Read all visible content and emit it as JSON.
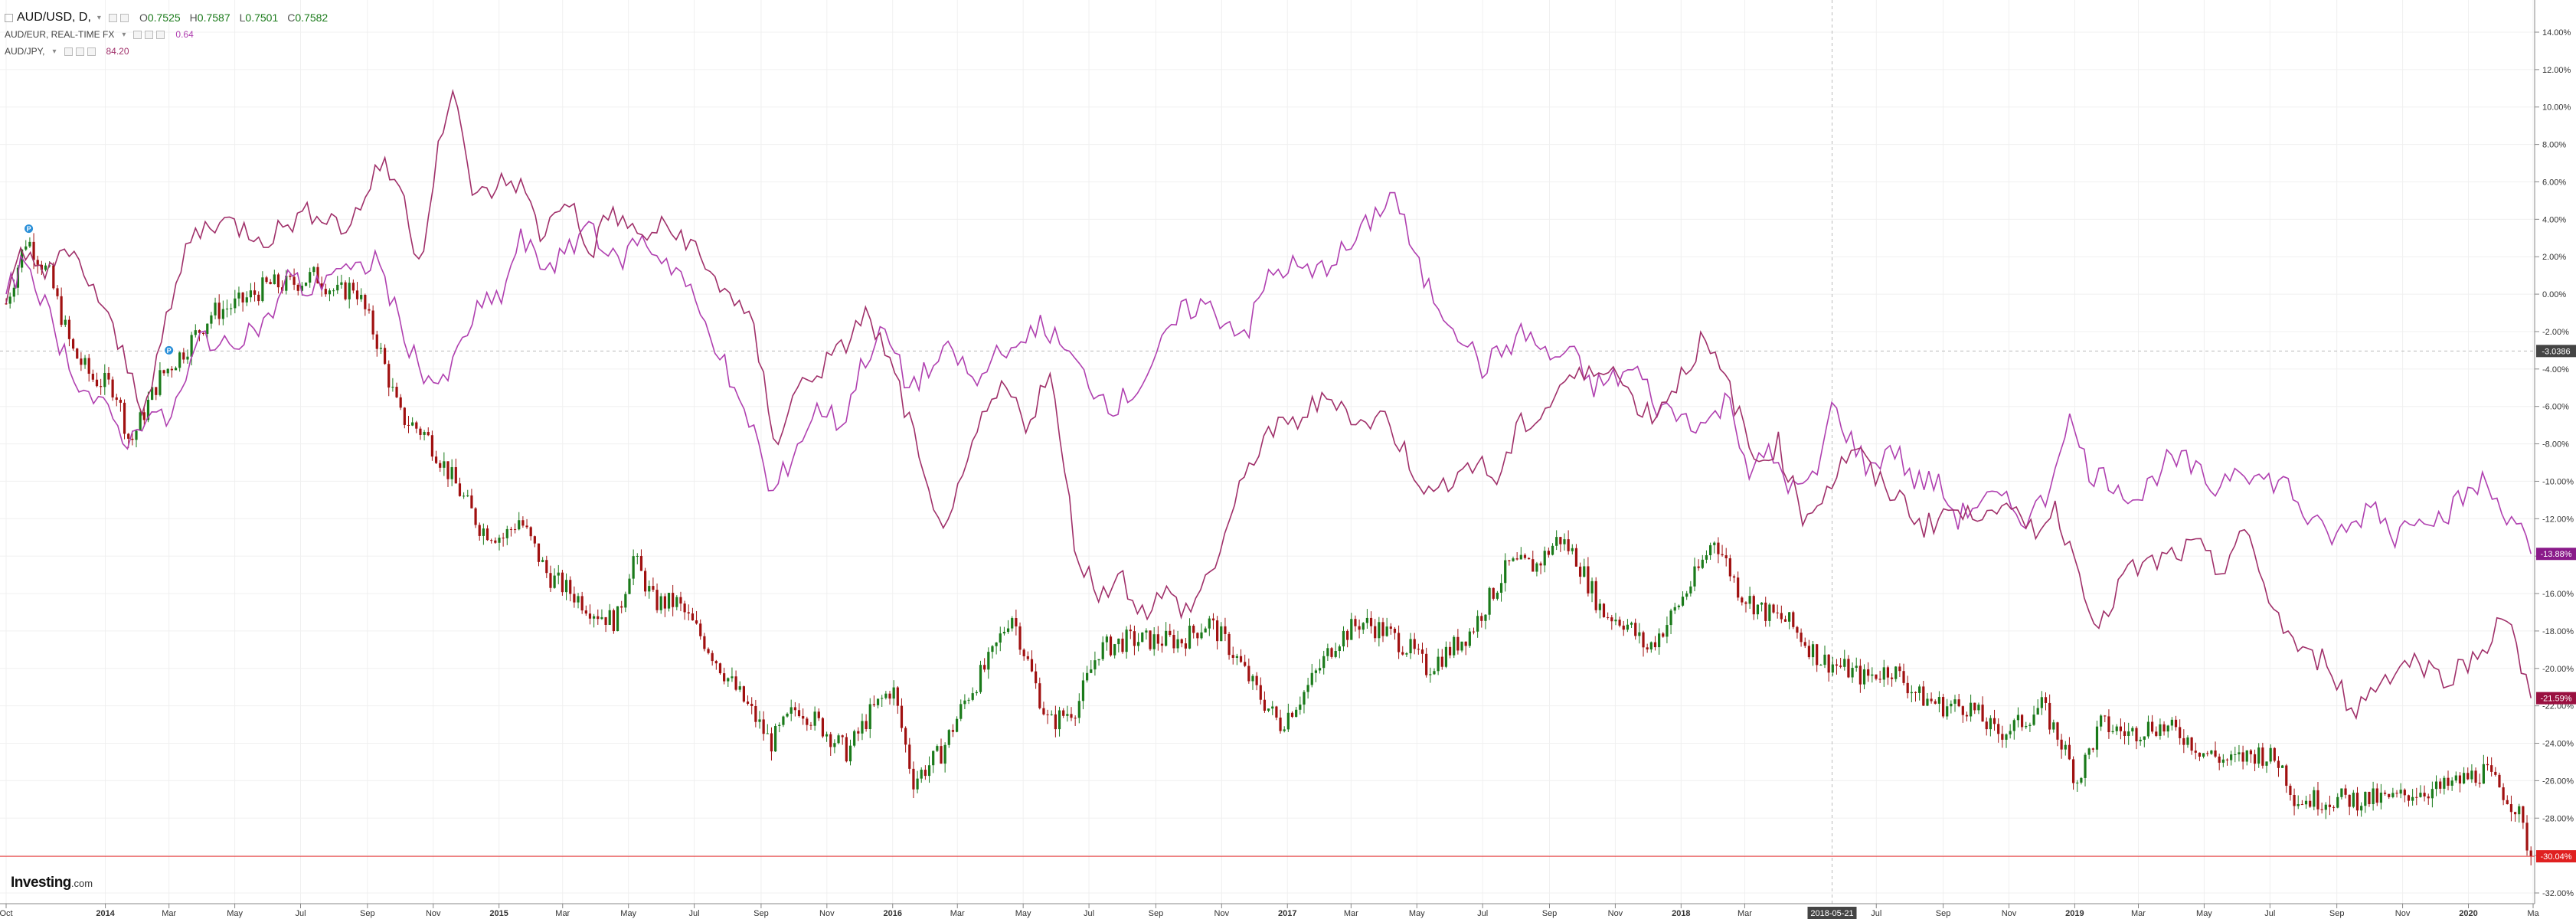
{
  "legend": {
    "main": {
      "symbol": "AUD/USD, D,",
      "open_label": "O",
      "open": "0.7525",
      "high_label": "H",
      "high": "0.7587",
      "low_label": "L",
      "low": "0.7501",
      "close_label": "C",
      "close": "0.7582"
    },
    "compare1": {
      "symbol": "AUD/EUR, REAL-TIME FX",
      "value": "0.64",
      "color": "#b040b0"
    },
    "compare2": {
      "symbol": "AUD/JPY,",
      "value": "84.20",
      "color": "#a0306a"
    }
  },
  "logo": {
    "brand": "Investing",
    "suffix": ".com"
  },
  "colors": {
    "up": "#1a7a1a",
    "down": "#a01010",
    "aud_eur": "#b040b0",
    "aud_jpy": "#a0306a",
    "last_price_line": "#e63030",
    "crosshair": "#bbbbbb",
    "grid": "#f0f0f0"
  },
  "chart_data": {
    "type": "line",
    "title": "AUD/USD, D,",
    "xlabel": "",
    "ylabel": "",
    "y_scale": "percent change",
    "ylim": [
      -32,
      15
    ],
    "x_range": [
      "2013-10-01",
      "2020-03-01"
    ],
    "grid": true,
    "legend_position": "top-left",
    "x_ticks": [
      {
        "date": "2013-10-01",
        "label": "Oct"
      },
      {
        "date": "2014-01-01",
        "label": "2014"
      },
      {
        "date": "2014-03-01",
        "label": "Mar"
      },
      {
        "date": "2014-05-01",
        "label": "May"
      },
      {
        "date": "2014-07-01",
        "label": "Jul"
      },
      {
        "date": "2014-09-01",
        "label": "Sep"
      },
      {
        "date": "2014-11-01",
        "label": "Nov"
      },
      {
        "date": "2015-01-01",
        "label": "2015"
      },
      {
        "date": "2015-03-01",
        "label": "Mar"
      },
      {
        "date": "2015-05-01",
        "label": "May"
      },
      {
        "date": "2015-07-01",
        "label": "Jul"
      },
      {
        "date": "2015-09-01",
        "label": "Sep"
      },
      {
        "date": "2015-11-01",
        "label": "Nov"
      },
      {
        "date": "2016-01-01",
        "label": "2016"
      },
      {
        "date": "2016-03-01",
        "label": "Mar"
      },
      {
        "date": "2016-05-01",
        "label": "May"
      },
      {
        "date": "2016-07-01",
        "label": "Jul"
      },
      {
        "date": "2016-09-01",
        "label": "Sep"
      },
      {
        "date": "2016-11-01",
        "label": "Nov"
      },
      {
        "date": "2017-01-01",
        "label": "2017"
      },
      {
        "date": "2017-03-01",
        "label": "Mar"
      },
      {
        "date": "2017-05-01",
        "label": "May"
      },
      {
        "date": "2017-07-01",
        "label": "Jul"
      },
      {
        "date": "2017-09-01",
        "label": "Sep"
      },
      {
        "date": "2017-11-01",
        "label": "Nov"
      },
      {
        "date": "2018-01-01",
        "label": "2018"
      },
      {
        "date": "2018-03-01",
        "label": "Mar"
      },
      {
        "date": "2018-07-01",
        "label": "Jul"
      },
      {
        "date": "2018-09-01",
        "label": "Sep"
      },
      {
        "date": "2018-11-01",
        "label": "Nov"
      },
      {
        "date": "2019-01-01",
        "label": "2019"
      },
      {
        "date": "2019-03-01",
        "label": "Mar"
      },
      {
        "date": "2019-05-01",
        "label": "May"
      },
      {
        "date": "2019-07-01",
        "label": "Jul"
      },
      {
        "date": "2019-09-01",
        "label": "Sep"
      },
      {
        "date": "2019-11-01",
        "label": "Nov"
      },
      {
        "date": "2020-01-01",
        "label": "2020"
      },
      {
        "date": "2020-03-01",
        "label": "Ma"
      }
    ],
    "y_ticks": [
      "14.00%",
      "12.00%",
      "10.00%",
      "8.00%",
      "6.00%",
      "4.00%",
      "2.00%",
      "0.00%",
      "-2.00%",
      "-4.00%",
      "-6.00%",
      "-8.00%",
      "-10.00%",
      "-12.00%",
      "-14.00%",
      "-16.00%",
      "-18.00%",
      "-20.00%",
      "-22.00%",
      "-24.00%",
      "-26.00%",
      "-28.00%",
      "-30.00%",
      "-32.00%"
    ],
    "crosshair": {
      "date": "2018-05-21",
      "label": "2018-05-21",
      "value": -3.0386,
      "value_label": "-3.0386"
    },
    "badges": [
      {
        "series": "AUD/EUR",
        "value": -13.88,
        "label": "-13.88%",
        "color": "#8a1a8a"
      },
      {
        "series": "AUD/JPY",
        "value": -21.59,
        "label": "-21.59%",
        "color": "#9a1040"
      },
      {
        "series": "AUD/USD",
        "value": -30.04,
        "label": "-30.04%",
        "color": "#e02020"
      }
    ],
    "markers": [
      {
        "date": "2013-10-22",
        "value": 3.5,
        "label": "P"
      },
      {
        "date": "2014-03-01",
        "value": -3.0,
        "label": "P"
      }
    ],
    "series": [
      {
        "name": "AUD/USD",
        "style": "candles",
        "x": [
          "2013-10-01",
          "2013-10-20",
          "2013-11-10",
          "2013-12-01",
          "2013-12-20",
          "2014-01-10",
          "2014-01-24",
          "2014-02-20",
          "2014-03-15",
          "2014-04-10",
          "2014-05-05",
          "2014-06-01",
          "2014-06-20",
          "2014-07-15",
          "2014-08-05",
          "2014-08-20",
          "2014-09-10",
          "2014-10-01",
          "2014-10-25",
          "2014-11-20",
          "2014-12-15",
          "2015-01-05",
          "2015-01-20",
          "2015-02-15",
          "2015-03-10",
          "2015-04-01",
          "2015-04-20",
          "2015-05-05",
          "2015-05-25",
          "2015-06-15",
          "2015-07-10",
          "2015-08-01",
          "2015-08-25",
          "2015-09-10",
          "2015-10-05",
          "2015-10-25",
          "2015-11-20",
          "2015-12-10",
          "2016-01-01",
          "2016-01-20",
          "2016-02-15",
          "2016-03-10",
          "2016-04-01",
          "2016-04-20",
          "2016-05-10",
          "2016-05-25",
          "2016-06-20",
          "2016-07-10",
          "2016-08-05",
          "2016-09-01",
          "2016-09-25",
          "2016-10-20",
          "2016-11-10",
          "2016-12-01",
          "2016-12-25",
          "2017-01-20",
          "2017-02-15",
          "2017-03-10",
          "2017-04-01",
          "2017-04-25",
          "2017-05-10",
          "2017-06-01",
          "2017-06-20",
          "2017-07-10",
          "2017-07-25",
          "2017-08-20",
          "2017-09-10",
          "2017-09-25",
          "2017-10-20",
          "2017-11-10",
          "2017-12-01",
          "2017-12-20",
          "2018-01-15",
          "2018-02-01",
          "2018-02-25",
          "2018-03-20",
          "2018-04-10",
          "2018-05-10",
          "2018-06-01",
          "2018-06-20",
          "2018-07-15",
          "2018-08-10",
          "2018-09-01",
          "2018-09-25",
          "2018-10-20",
          "2018-11-10",
          "2018-12-01",
          "2018-12-20",
          "2019-01-03",
          "2019-01-25",
          "2019-02-20",
          "2019-03-15",
          "2019-04-10",
          "2019-05-01",
          "2019-05-25",
          "2019-06-20",
          "2019-07-10",
          "2019-07-25",
          "2019-08-15",
          "2019-09-10",
          "2019-10-05",
          "2019-10-25",
          "2019-11-15",
          "2019-12-05",
          "2019-12-25",
          "2020-01-15",
          "2020-02-01",
          "2020-02-15",
          "2020-02-28"
        ],
        "values": [
          -0.5,
          3.0,
          1.0,
          -3.0,
          -4.5,
          -5.0,
          -8.0,
          -4.5,
          -3.0,
          -1.0,
          -0.5,
          0.5,
          0.5,
          1.0,
          0.0,
          0.5,
          -2.5,
          -6.5,
          -7.5,
          -10.0,
          -12.5,
          -13.0,
          -12.0,
          -15.0,
          -16.0,
          -17.0,
          -17.5,
          -14.0,
          -16.5,
          -16.5,
          -18.5,
          -20.5,
          -22.5,
          -24.0,
          -22.0,
          -23.0,
          -24.5,
          -22.5,
          -21.0,
          -26.0,
          -24.5,
          -21.5,
          -19.5,
          -17.0,
          -20.5,
          -23.0,
          -22.0,
          -19.0,
          -18.5,
          -18.5,
          -18.5,
          -17.5,
          -19.0,
          -21.0,
          -23.0,
          -21.0,
          -18.5,
          -17.5,
          -18.0,
          -19.0,
          -20.0,
          -19.0,
          -18.0,
          -16.0,
          -14.5,
          -14.5,
          -13.0,
          -14.0,
          -17.0,
          -17.5,
          -19.0,
          -17.5,
          -15.0,
          -13.0,
          -16.0,
          -17.0,
          -17.5,
          -19.5,
          -20.0,
          -20.5,
          -20.0,
          -21.5,
          -22.0,
          -22.0,
          -23.5,
          -23.0,
          -22.0,
          -24.0,
          -26.0,
          -23.0,
          -23.5,
          -23.0,
          -23.5,
          -24.5,
          -25.0,
          -24.5,
          -25.0,
          -27.0,
          -27.0,
          -27.0,
          -27.0,
          -27.0,
          -26.5,
          -26.5,
          -26.0,
          -25.5,
          -26.5,
          -27.5,
          -30.04
        ]
      },
      {
        "name": "AUD/EUR",
        "style": "line",
        "color": "#b040b0",
        "x": [
          "2013-10-01",
          "2013-10-20",
          "2013-11-15",
          "2013-12-10",
          "2014-01-05",
          "2014-01-24",
          "2014-02-10",
          "2014-02-25",
          "2014-03-15",
          "2014-04-01",
          "2014-04-20",
          "2014-05-10",
          "2014-06-01",
          "2014-06-20",
          "2014-07-10",
          "2014-08-01",
          "2014-08-20",
          "2014-09-10",
          "2014-09-30",
          "2014-10-20",
          "2014-11-10",
          "2014-11-25",
          "2014-12-10",
          "2015-01-05",
          "2015-01-20",
          "2015-02-10",
          "2015-03-05",
          "2015-03-25",
          "2015-04-20",
          "2015-05-10",
          "2015-06-01",
          "2015-06-20",
          "2015-07-05",
          "2015-07-25",
          "2015-08-10",
          "2015-08-25",
          "2015-09-10",
          "2015-10-05",
          "2015-10-25",
          "2015-11-15",
          "2015-12-05",
          "2015-12-25",
          "2016-01-15",
          "2016-02-05",
          "2016-02-25",
          "2016-03-20",
          "2016-04-10",
          "2016-04-25",
          "2016-05-10",
          "2016-05-25",
          "2016-06-15",
          "2016-07-05",
          "2016-07-25",
          "2016-08-15",
          "2016-09-05",
          "2016-09-25",
          "2016-10-15",
          "2016-11-05",
          "2016-11-25",
          "2016-12-15",
          "2017-01-05",
          "2017-01-25",
          "2017-02-15",
          "2017-03-01",
          "2017-03-20",
          "2017-04-10",
          "2017-05-01",
          "2017-05-20",
          "2017-06-10",
          "2017-07-01",
          "2017-07-20",
          "2017-08-10",
          "2017-09-01",
          "2017-09-20",
          "2017-10-10",
          "2017-11-01",
          "2017-11-20",
          "2017-12-10",
          "2018-01-01",
          "2018-01-25",
          "2018-02-15",
          "2018-03-05",
          "2018-03-25",
          "2018-04-15",
          "2018-05-05",
          "2018-05-21",
          "2018-06-10",
          "2018-06-25",
          "2018-07-15",
          "2018-08-05",
          "2018-08-25",
          "2018-09-15",
          "2018-10-05",
          "2018-10-25",
          "2018-11-15",
          "2018-12-05",
          "2018-12-25",
          "2019-01-15",
          "2019-02-05",
          "2019-03-01",
          "2019-03-25",
          "2019-04-15",
          "2019-05-10",
          "2019-06-01",
          "2019-06-25",
          "2019-07-15",
          "2019-08-05",
          "2019-08-25",
          "2019-09-15",
          "2019-10-05",
          "2019-10-25",
          "2019-11-15",
          "2019-12-05",
          "2019-12-25",
          "2020-01-15",
          "2020-02-01",
          "2020-02-15",
          "2020-02-28"
        ],
        "values": [
          0.0,
          2.0,
          -2.0,
          -5.0,
          -6.5,
          -8.0,
          -6.0,
          -7.0,
          -5.0,
          -2.0,
          -3.0,
          -2.0,
          -1.5,
          1.0,
          0.0,
          1.5,
          1.0,
          2.0,
          -1.5,
          -4.0,
          -5.0,
          -3.0,
          -1.0,
          0.0,
          3.0,
          1.5,
          2.0,
          4.0,
          1.5,
          3.0,
          2.0,
          1.0,
          -1.0,
          -3.0,
          -6.0,
          -7.0,
          -11.0,
          -8.0,
          -6.0,
          -7.0,
          -3.5,
          -2.0,
          -5.0,
          -4.0,
          -3.0,
          -5.0,
          -2.5,
          -3.5,
          -1.5,
          -2.0,
          -3.5,
          -5.0,
          -6.0,
          -5.0,
          -3.0,
          -1.0,
          -0.5,
          -1.5,
          -2.0,
          1.0,
          1.5,
          1.0,
          2.0,
          2.5,
          4.0,
          5.5,
          1.5,
          -0.5,
          -2.0,
          -4.0,
          -3.0,
          -2.0,
          -3.5,
          -3.0,
          -5.0,
          -4.5,
          -4.0,
          -6.0,
          -6.5,
          -7.0,
          -5.5,
          -9.5,
          -8.5,
          -10.5,
          -10.0,
          -6.0,
          -8.0,
          -9.5,
          -8.0,
          -10.0,
          -10.0,
          -12.0,
          -11.0,
          -11.0,
          -12.0,
          -11.0,
          -6.5,
          -9.5,
          -10.0,
          -11.0,
          -9.0,
          -9.0,
          -10.5,
          -9.0,
          -10.0,
          -10.0,
          -12.0,
          -13.0,
          -12.5,
          -11.0,
          -13.0,
          -11.5,
          -12.0,
          -11.0,
          -10.0,
          -11.5,
          -12.0,
          -13.88
        ]
      },
      {
        "name": "AUD/JPY",
        "style": "line",
        "color": "#a0306a",
        "x": [
          "2013-10-01",
          "2013-10-15",
          "2013-11-05",
          "2013-12-01",
          "2013-12-20",
          "2014-01-15",
          "2014-02-05",
          "2014-02-25",
          "2014-03-20",
          "2014-04-15",
          "2014-05-10",
          "2014-06-01",
          "2014-06-25",
          "2014-07-20",
          "2014-08-10",
          "2014-08-25",
          "2014-09-10",
          "2014-09-30",
          "2014-10-20",
          "2014-11-05",
          "2014-11-20",
          "2014-12-10",
          "2015-01-05",
          "2015-01-20",
          "2015-02-10",
          "2015-03-05",
          "2015-03-25",
          "2015-04-15",
          "2015-05-10",
          "2015-06-01",
          "2015-06-25",
          "2015-07-15",
          "2015-08-05",
          "2015-08-25",
          "2015-09-15",
          "2015-10-05",
          "2015-10-25",
          "2015-11-15",
          "2015-12-05",
          "2015-12-25",
          "2016-01-15",
          "2016-02-10",
          "2016-03-05",
          "2016-03-25",
          "2016-04-15",
          "2016-05-05",
          "2016-05-25",
          "2016-06-20",
          "2016-07-10",
          "2016-07-30",
          "2016-08-20",
          "2016-09-10",
          "2016-10-01",
          "2016-10-25",
          "2016-11-15",
          "2016-12-10",
          "2017-01-05",
          "2017-01-25",
          "2017-02-15",
          "2017-03-10",
          "2017-04-01",
          "2017-04-25",
          "2017-05-15",
          "2017-06-05",
          "2017-06-25",
          "2017-07-15",
          "2017-08-05",
          "2017-08-25",
          "2017-09-15",
          "2017-10-05",
          "2017-10-25",
          "2017-11-15",
          "2017-12-05",
          "2017-12-25",
          "2018-01-20",
          "2018-02-15",
          "2018-03-10",
          "2018-04-01",
          "2018-04-25",
          "2018-05-21",
          "2018-06-10",
          "2018-07-01",
          "2018-07-25",
          "2018-08-15",
          "2018-09-05",
          "2018-09-25",
          "2018-10-15",
          "2018-11-05",
          "2018-11-25",
          "2018-12-15",
          "2019-01-03",
          "2019-01-25",
          "2019-02-15",
          "2019-03-10",
          "2019-04-01",
          "2019-04-25",
          "2019-05-15",
          "2019-06-05",
          "2019-06-25",
          "2019-07-15",
          "2019-08-05",
          "2019-08-25",
          "2019-09-15",
          "2019-10-05",
          "2019-10-25",
          "2019-11-15",
          "2019-12-05",
          "2019-12-25",
          "2020-01-15",
          "2020-02-01",
          "2020-02-15",
          "2020-02-28"
        ],
        "values": [
          -0.5,
          2.0,
          1.5,
          2.0,
          0.5,
          -3.0,
          -6.0,
          -2.0,
          3.0,
          4.0,
          3.5,
          3.0,
          4.0,
          4.5,
          3.5,
          4.5,
          7.0,
          6.0,
          1.5,
          8.0,
          10.5,
          5.0,
          6.0,
          6.0,
          3.0,
          5.5,
          2.0,
          4.5,
          3.0,
          3.5,
          3.0,
          1.0,
          0.0,
          -2.0,
          -8.0,
          -5.0,
          -4.0,
          -3.0,
          -1.0,
          -3.0,
          -6.5,
          -12.5,
          -10.5,
          -6.5,
          -5.0,
          -7.0,
          -4.0,
          -14.0,
          -16.0,
          -15.0,
          -17.0,
          -16.0,
          -17.0,
          -14.5,
          -11.0,
          -7.5,
          -7.0,
          -6.0,
          -5.5,
          -7.0,
          -6.5,
          -9.0,
          -11.0,
          -9.5,
          -9.0,
          -10.0,
          -7.0,
          -6.5,
          -4.5,
          -4.5,
          -3.5,
          -5.5,
          -6.5,
          -5.0,
          -2.5,
          -5.0,
          -9.0,
          -8.0,
          -12.0,
          -10.0,
          -8.0,
          -10.0,
          -11.0,
          -12.5,
          -11.5,
          -12.0,
          -11.0,
          -12.0,
          -12.5,
          -11.5,
          -14.5,
          -18.0,
          -15.0,
          -14.5,
          -14.0,
          -13.5,
          -15.0,
          -12.5,
          -15.5,
          -18.0,
          -19.5,
          -19.5,
          -22.5,
          -21.0,
          -20.0,
          -19.5,
          -20.5,
          -20.0,
          -19.0,
          -17.0,
          -19.0,
          -21.59
        ]
      }
    ]
  }
}
